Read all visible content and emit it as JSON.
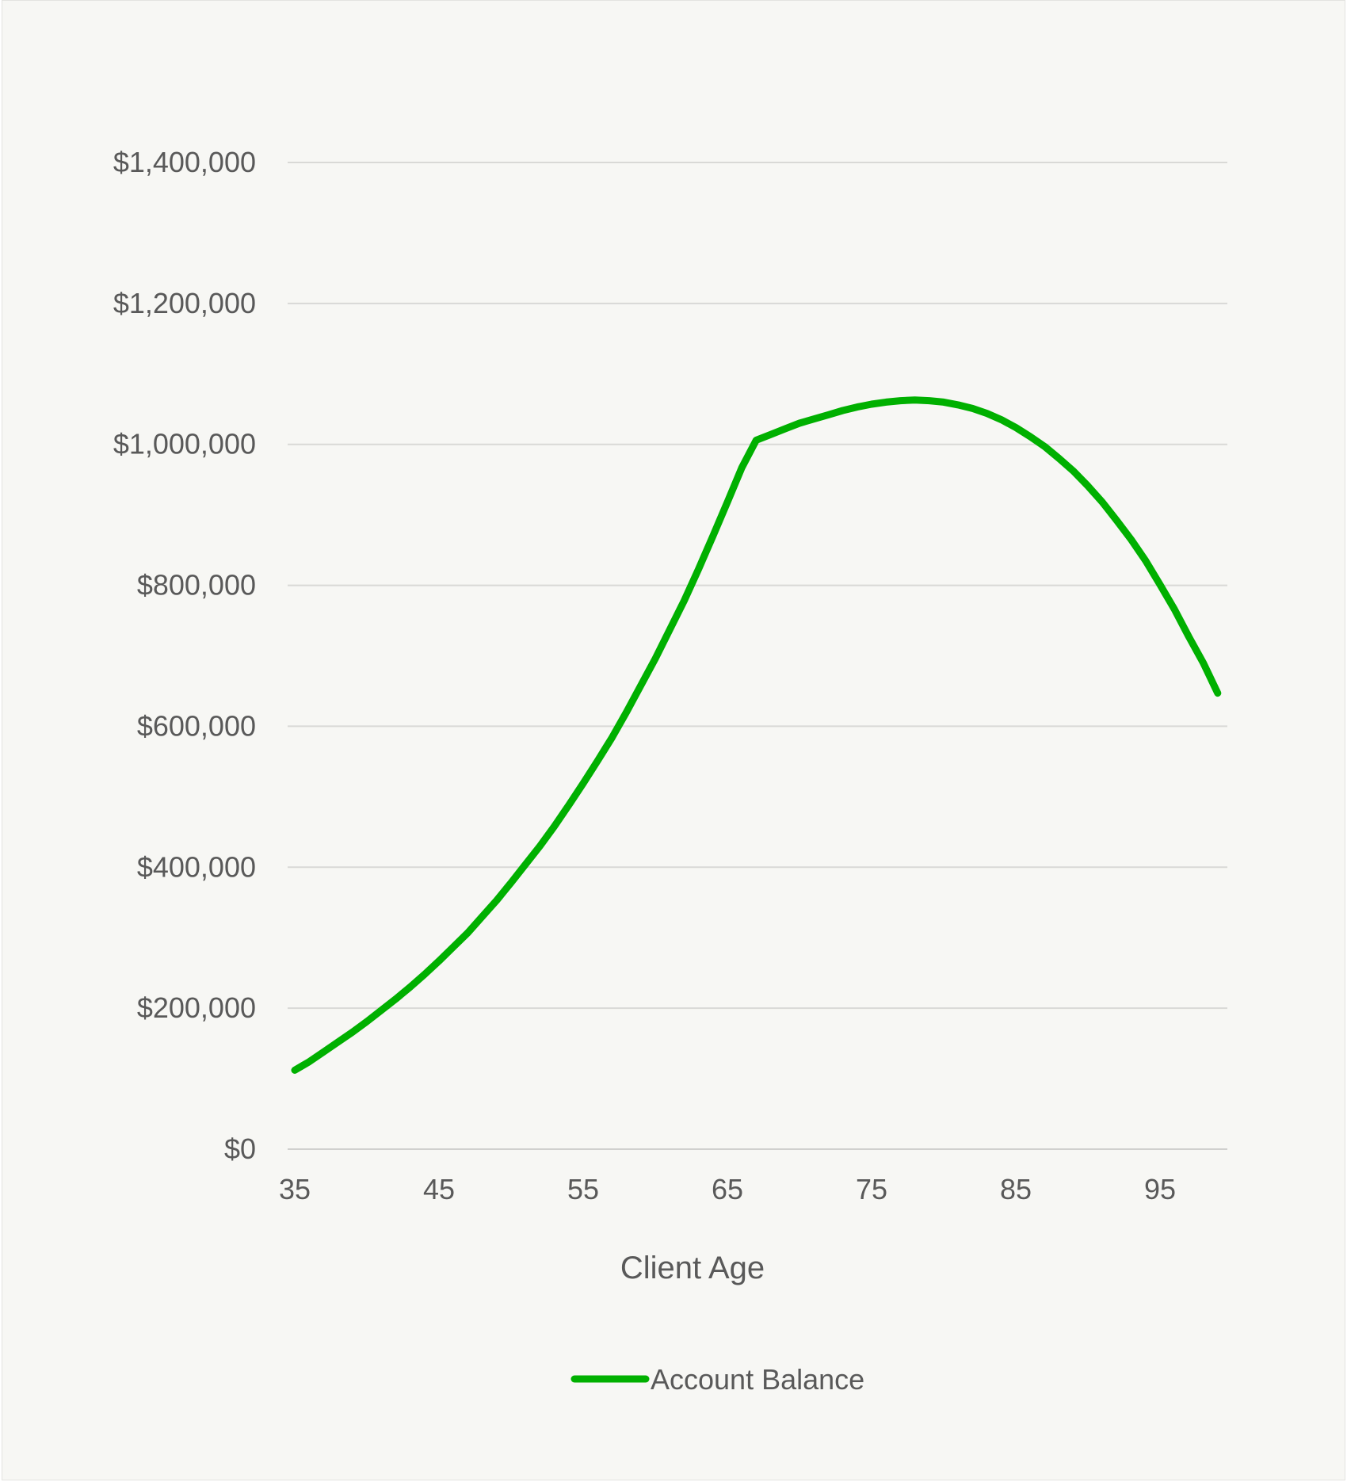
{
  "chart_data": {
    "type": "line",
    "title": "",
    "xlabel": "Client Age",
    "ylabel": "",
    "xlim": [
      35,
      99
    ],
    "ylim": [
      0,
      1400000
    ],
    "grid": true,
    "legend_position": "bottom",
    "x_ticks": [
      35,
      45,
      55,
      65,
      75,
      85,
      95
    ],
    "x_tick_labels": [
      "35",
      "45",
      "55",
      "65",
      "75",
      "85",
      "95"
    ],
    "y_ticks": [
      0,
      200000,
      400000,
      600000,
      800000,
      1000000,
      1200000,
      1400000
    ],
    "y_tick_labels": [
      "$0",
      "$200,000",
      "$400,000",
      "$600,000",
      "$800,000",
      "$1,000,000",
      "$1,200,000",
      "$1,400,000"
    ],
    "series": [
      {
        "name": "Account Balance",
        "color": "#00b000",
        "x": [
          35,
          36,
          37,
          38,
          39,
          40,
          41,
          42,
          43,
          44,
          45,
          46,
          47,
          48,
          49,
          50,
          51,
          52,
          53,
          54,
          55,
          56,
          57,
          58,
          59,
          60,
          61,
          62,
          63,
          64,
          65,
          66,
          67,
          68,
          69,
          70,
          71,
          72,
          73,
          74,
          75,
          76,
          77,
          78,
          79,
          80,
          81,
          82,
          83,
          84,
          85,
          86,
          87,
          88,
          89,
          90,
          91,
          92,
          93,
          94,
          95,
          96,
          97,
          98,
          99
        ],
        "values": [
          112000,
          124000,
          138000,
          152000,
          166000,
          181000,
          197000,
          213000,
          230000,
          248000,
          267000,
          287000,
          307000,
          330000,
          353000,
          378000,
          404000,
          430000,
          458000,
          488000,
          519000,
          551000,
          584000,
          620000,
          658000,
          696000,
          737000,
          778000,
          823000,
          870000,
          918000,
          967000,
          1006000,
          1014000,
          1022000,
          1030000,
          1036000,
          1042000,
          1048000,
          1053000,
          1057000,
          1060000,
          1062000,
          1063000,
          1062000,
          1060000,
          1056000,
          1051000,
          1044000,
          1035000,
          1024000,
          1011000,
          997000,
          980000,
          962000,
          941000,
          918000,
          892000,
          865000,
          835000,
          801000,
          766000,
          727000,
          690000,
          647000
        ]
      }
    ]
  }
}
